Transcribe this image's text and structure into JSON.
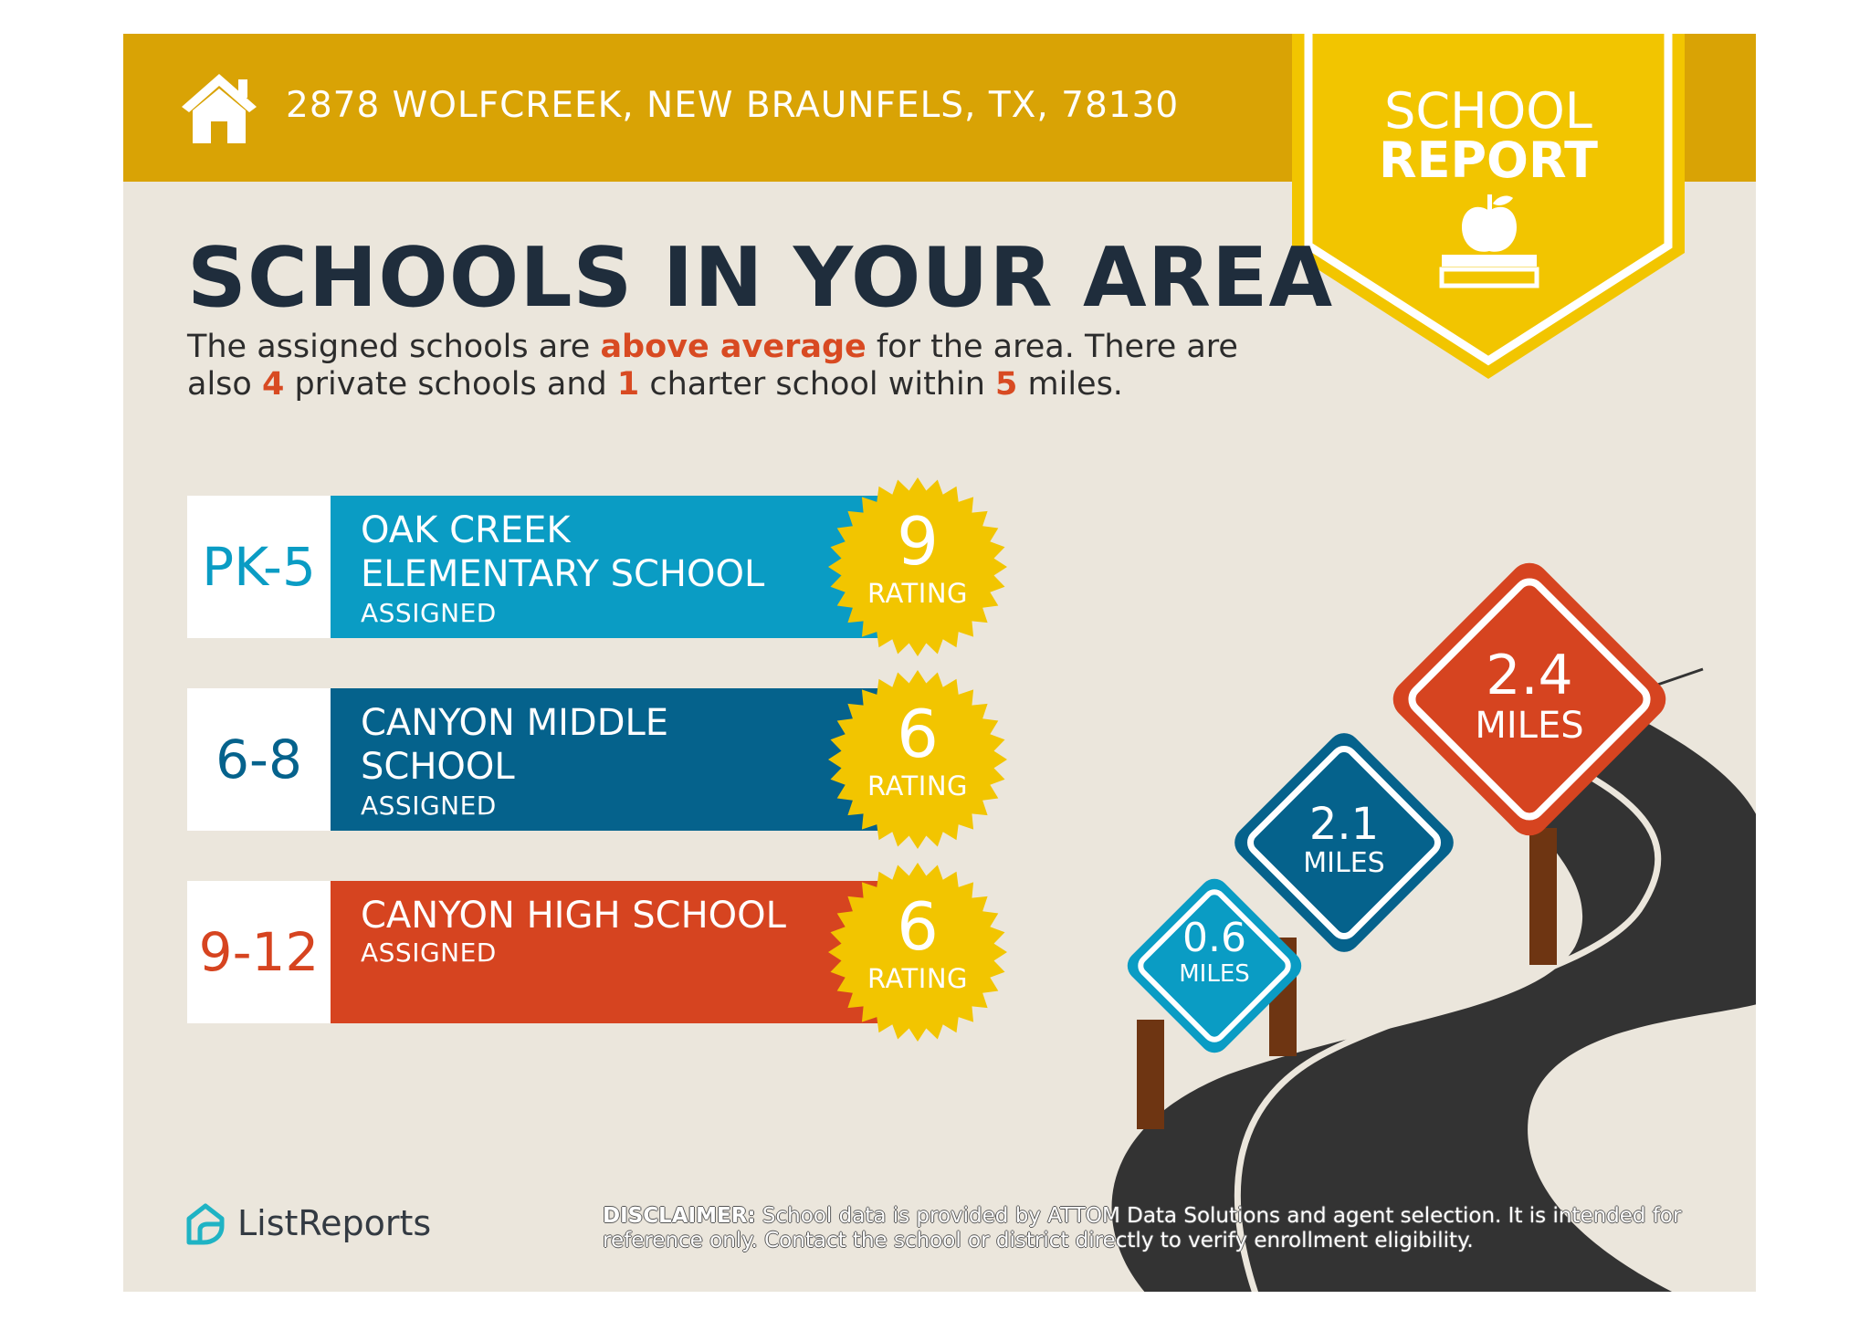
{
  "header": {
    "address": "2878 WOLFCREEK, NEW BRAUNFELS, TX, 78130",
    "icon": "house-icon"
  },
  "badge": {
    "line1": "SCHOOL",
    "line2": "REPORT",
    "icon": "apple-on-book-icon",
    "color": "#f2c500"
  },
  "headline": "SCHOOLS IN YOUR AREA",
  "intro": {
    "p1": "The assigned schools are ",
    "h1": "above average",
    "p2": " for the area. There are also ",
    "h2": "4",
    "p3": " private schools and ",
    "h3": "1",
    "p4": " charter school within ",
    "h4": "5",
    "p5": " miles."
  },
  "schools": [
    {
      "grades": "PK-5",
      "name_line1": "OAK CREEK",
      "name_line2": "ELEMENTARY SCHOOL",
      "status": "ASSIGNED",
      "rating": "9",
      "rating_label": "RATING",
      "color": "#0a9cc4"
    },
    {
      "grades": "6-8",
      "name_line1": "CANYON MIDDLE",
      "name_line2": "SCHOOL",
      "status": "ASSIGNED",
      "rating": "6",
      "rating_label": "RATING",
      "color": "#05628c"
    },
    {
      "grades": "9-12",
      "name_line1": "CANYON HIGH SCHOOL",
      "name_line2": "",
      "status": "ASSIGNED",
      "rating": "6",
      "rating_label": "RATING",
      "color": "#d64420"
    }
  ],
  "signs": [
    {
      "distance": "0.6",
      "unit": "MILES",
      "color": "#0a9cc4"
    },
    {
      "distance": "2.1",
      "unit": "MILES",
      "color": "#05628c"
    },
    {
      "distance": "2.4",
      "unit": "MILES",
      "color": "#d64420"
    }
  ],
  "footer": {
    "logo_text": "ListReports",
    "logo_icon": "listreports-logo-icon",
    "disclaimer_label": "DISCLAIMER:",
    "disclaimer_text": " School data is provided by ATTOM Data Solutions and agent selection. It is intended for reference only. Contact the school or district directly to verify enrollment eligibility."
  }
}
